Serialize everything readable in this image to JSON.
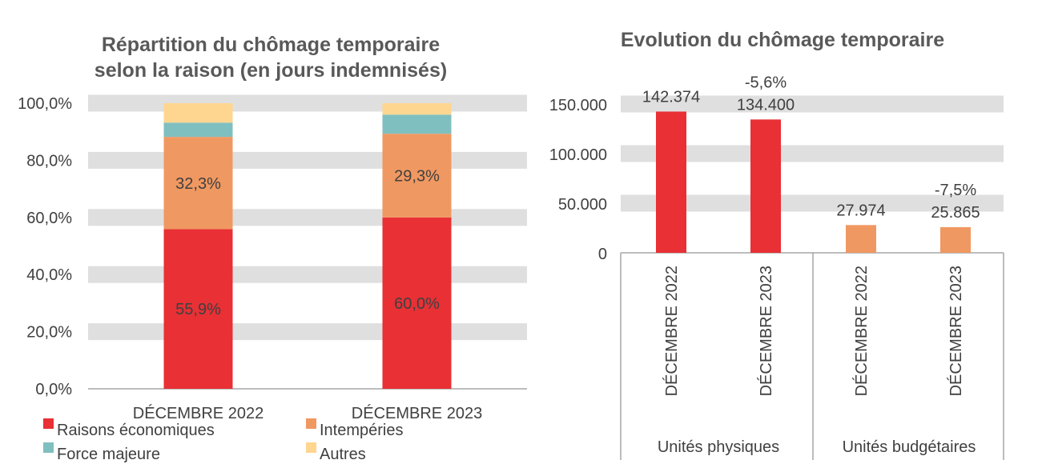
{
  "chart_data": [
    {
      "type": "bar",
      "stacked": true,
      "title": "Répartition du chômage temporaire selon la raison (en jours indemnisés)",
      "title_lines": [
        "Répartition du chômage temporaire",
        "selon la raison (en jours indemnisés)"
      ],
      "categories": [
        "DÉCEMBRE 2022",
        "DÉCEMBRE 2023"
      ],
      "ylim": [
        0,
        100
      ],
      "yticks": [
        "0,0%",
        "20,0%",
        "40,0%",
        "60,0%",
        "80,0%",
        "100,0%"
      ],
      "grid": "alternating bands",
      "legend_position": "bottom",
      "series": [
        {
          "name": "Raisons économiques",
          "color": "#E83035",
          "values": [
            55.9,
            60.0
          ],
          "labels": [
            "55,9%",
            "60,0%"
          ]
        },
        {
          "name": "Intempéries",
          "color": "#F09861",
          "values": [
            32.3,
            29.3
          ],
          "labels": [
            "32,3%",
            "29,3%"
          ]
        },
        {
          "name": "Force majeure",
          "color": "#80BFBF",
          "values": [
            5.0,
            6.7
          ]
        },
        {
          "name": "Autres",
          "color": "#FFD690",
          "values": [
            6.8,
            4.0
          ]
        }
      ]
    },
    {
      "type": "bar",
      "title": "Evolution du chômage temporaire",
      "groups": [
        "Unités physiques",
        "Unités budgétaires"
      ],
      "categories": [
        "DÉCEMBRE 2022",
        "DÉCEMBRE 2023",
        "DÉCEMBRE 2022",
        "DÉCEMBRE 2023"
      ],
      "values": [
        142374,
        134400,
        27974,
        25865
      ],
      "value_labels": [
        "142.374",
        "134.400",
        "27.974",
        "25.865"
      ],
      "change_labels": [
        "",
        "-5,6%",
        "",
        "-7,5%"
      ],
      "colors": [
        "#E83035",
        "#E83035",
        "#F09861",
        "#F09861"
      ],
      "ylim": [
        0,
        150000
      ],
      "yticks": [
        "0",
        "50.000",
        "100.000",
        "150.000"
      ],
      "grid": "alternating bands"
    }
  ]
}
